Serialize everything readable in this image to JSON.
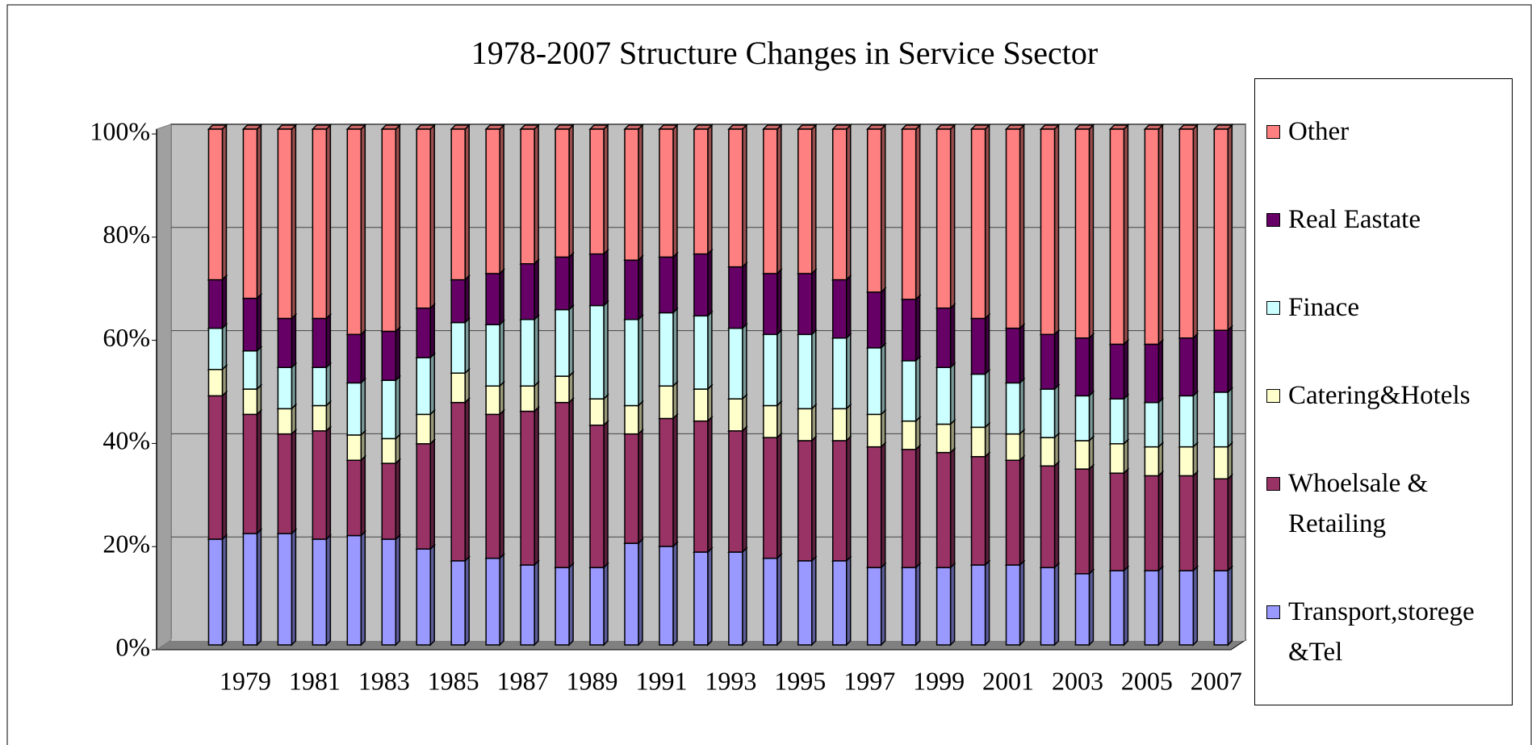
{
  "chart_data": {
    "type": "stacked_bar_3d",
    "title": "1978-2007 Structure Changes in Service Ssector",
    "categories": [
      null,
      null,
      "1979",
      null,
      "1981",
      null,
      "1983",
      null,
      "1985",
      null,
      "1987",
      null,
      "1989",
      null,
      "1991",
      null,
      "1993",
      null,
      "1995",
      null,
      "1997",
      null,
      "1999",
      null,
      "2001",
      null,
      "2003",
      null,
      "2005",
      null,
      "2007"
    ],
    "series": [
      {
        "name": "Transport,storege &Tel",
        "color": "#9999ff",
        "values": [
          null,
          20.5,
          21.6,
          21.6,
          20.5,
          21.2,
          20.5,
          18.6,
          16.3,
          16.8,
          15.5,
          15.0,
          15.0,
          19.7,
          19.1,
          18.0,
          18.0,
          16.8,
          16.3,
          16.3,
          15.0,
          15.0,
          15.0,
          15.5,
          15.5,
          15.0,
          13.8,
          14.4,
          14.4,
          14.4,
          14.4
        ]
      },
      {
        "name": "Whoelsale & Retailing",
        "color": "#993366",
        "values": [
          null,
          27.8,
          23.1,
          19.3,
          21.0,
          14.6,
          14.7,
          20.4,
          30.7,
          27.9,
          29.8,
          32.0,
          27.6,
          21.2,
          24.8,
          25.4,
          23.5,
          23.4,
          23.3,
          23.3,
          23.4,
          22.9,
          22.3,
          21.0,
          20.3,
          19.7,
          20.3,
          18.9,
          18.4,
          18.4,
          17.8
        ]
      },
      {
        "name": "Catering&Hotels",
        "color": "#ffffcc",
        "values": [
          null,
          5.1,
          4.9,
          4.9,
          4.9,
          4.9,
          4.8,
          5.7,
          5.7,
          5.5,
          4.9,
          5.1,
          5.1,
          5.5,
          6.3,
          6.2,
          6.2,
          6.2,
          6.2,
          6.2,
          6.3,
          5.5,
          5.5,
          5.7,
          5.1,
          5.5,
          5.5,
          5.7,
          5.6,
          5.6,
          6.2
        ]
      },
      {
        "name": "Finace",
        "color": "#ccffff",
        "values": [
          null,
          8.0,
          7.4,
          8.0,
          7.4,
          10.1,
          11.3,
          11.0,
          9.8,
          11.9,
          12.9,
          12.9,
          18.1,
          16.7,
          14.2,
          14.2,
          13.7,
          13.8,
          14.4,
          13.7,
          12.9,
          11.7,
          11.0,
          10.3,
          9.9,
          9.4,
          8.7,
          8.7,
          8.6,
          9.9,
          10.6
        ]
      },
      {
        "name": "Real Eastate",
        "color": "#660066",
        "values": [
          null,
          9.4,
          10.2,
          9.5,
          9.5,
          9.4,
          9.5,
          9.6,
          8.3,
          9.9,
          10.8,
          10.2,
          10.0,
          11.5,
          10.8,
          12.0,
          11.9,
          11.8,
          11.8,
          11.3,
          10.8,
          11.9,
          11.5,
          10.8,
          10.6,
          10.6,
          11.2,
          10.6,
          11.3,
          11.2,
          12.0
        ]
      },
      {
        "name": "Other",
        "color": "#ff8080",
        "values": [
          null,
          29.2,
          32.8,
          36.7,
          36.7,
          39.8,
          39.2,
          34.7,
          29.2,
          28.0,
          26.1,
          24.8,
          24.2,
          25.4,
          24.8,
          24.2,
          26.7,
          28.0,
          28.0,
          29.2,
          31.6,
          33.0,
          34.7,
          36.7,
          38.6,
          39.8,
          40.5,
          41.7,
          41.7,
          40.5,
          39.0
        ]
      }
    ],
    "ylim": [
      0,
      100
    ],
    "yticks": [
      {
        "value": 0,
        "label": "0%"
      },
      {
        "value": 20,
        "label": "20%"
      },
      {
        "value": 40,
        "label": "40%"
      },
      {
        "value": 60,
        "label": "60%"
      },
      {
        "value": 80,
        "label": "80%"
      },
      {
        "value": 100,
        "label": "100%"
      }
    ],
    "grid": true,
    "legend": "right"
  }
}
